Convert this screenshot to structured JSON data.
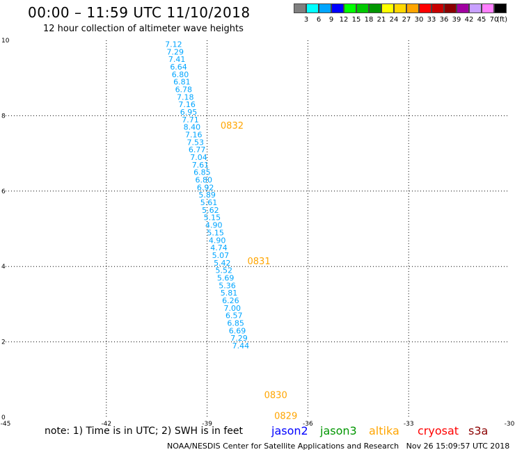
{
  "header": {
    "title": "00:00 – 11:59 UTC 11/10/2018",
    "subtitle": "12 hour collection of altimeter wave heights"
  },
  "color_scale": {
    "labels": [
      "3",
      "6",
      "9",
      "12",
      "15",
      "18",
      "21",
      "24",
      "27",
      "30",
      "33",
      "36",
      "39",
      "42",
      "45",
      "70"
    ],
    "units": "(ft)",
    "colors": [
      "#808080",
      "#00ffff",
      "#00a5ff",
      "#0000ff",
      "#00ff00",
      "#00c800",
      "#009600",
      "#ffff00",
      "#ffd700",
      "#ffa500",
      "#ff0000",
      "#c80000",
      "#8b0000",
      "#a000a0",
      "#c8a0ff",
      "#ff80ff",
      "#000000"
    ]
  },
  "chart_data": {
    "type": "scatter",
    "xlim": [
      -45,
      -30
    ],
    "ylim": [
      0,
      10
    ],
    "x_ticks": [
      "-45",
      "-42",
      "-39",
      "-36",
      "-33",
      "-30"
    ],
    "y_ticks": [
      "0",
      "2",
      "4",
      "6",
      "8",
      "10"
    ],
    "grid": true,
    "points": [
      {
        "x": -40.0,
        "y": 9.9,
        "v": "7.12"
      },
      {
        "x": -39.95,
        "y": 9.7,
        "v": "7.29"
      },
      {
        "x": -39.9,
        "y": 9.5,
        "v": "7.41"
      },
      {
        "x": -39.85,
        "y": 9.3,
        "v": "6.64"
      },
      {
        "x": -39.8,
        "y": 9.1,
        "v": "6.80"
      },
      {
        "x": -39.75,
        "y": 8.9,
        "v": "6.81"
      },
      {
        "x": -39.7,
        "y": 8.7,
        "v": "6.78"
      },
      {
        "x": -39.65,
        "y": 8.5,
        "v": "7.18"
      },
      {
        "x": -39.6,
        "y": 8.3,
        "v": "7.16"
      },
      {
        "x": -39.55,
        "y": 8.1,
        "v": "6.95"
      },
      {
        "x": -39.5,
        "y": 7.9,
        "v": "7.71"
      },
      {
        "x": -39.45,
        "y": 7.7,
        "v": "8.40"
      },
      {
        "x": -39.4,
        "y": 7.5,
        "v": "7.16"
      },
      {
        "x": -39.35,
        "y": 7.3,
        "v": "7.53"
      },
      {
        "x": -39.3,
        "y": 7.1,
        "v": "6.77"
      },
      {
        "x": -39.25,
        "y": 6.9,
        "v": "7.04"
      },
      {
        "x": -39.2,
        "y": 6.7,
        "v": "7.61"
      },
      {
        "x": -39.15,
        "y": 6.5,
        "v": "6.85"
      },
      {
        "x": -39.1,
        "y": 6.3,
        "v": "6.80"
      },
      {
        "x": -39.05,
        "y": 6.1,
        "v": "6.92"
      },
      {
        "x": -39.0,
        "y": 5.9,
        "v": "5.89"
      },
      {
        "x": -38.95,
        "y": 5.7,
        "v": "5.61"
      },
      {
        "x": -38.9,
        "y": 5.5,
        "v": "5.62"
      },
      {
        "x": -38.85,
        "y": 5.3,
        "v": "5.15"
      },
      {
        "x": -38.8,
        "y": 5.1,
        "v": "4.90"
      },
      {
        "x": -38.75,
        "y": 4.9,
        "v": "5.15"
      },
      {
        "x": -38.7,
        "y": 4.7,
        "v": "4.90"
      },
      {
        "x": -38.65,
        "y": 4.5,
        "v": "4.74"
      },
      {
        "x": -38.6,
        "y": 4.3,
        "v": "5.07"
      },
      {
        "x": -38.55,
        "y": 4.1,
        "v": "5.42"
      },
      {
        "x": -38.5,
        "y": 3.9,
        "v": "5.52"
      },
      {
        "x": -38.45,
        "y": 3.7,
        "v": "5.69"
      },
      {
        "x": -38.4,
        "y": 3.5,
        "v": "5.36"
      },
      {
        "x": -38.35,
        "y": 3.3,
        "v": "5.81"
      },
      {
        "x": -38.3,
        "y": 3.1,
        "v": "6.26"
      },
      {
        "x": -38.25,
        "y": 2.9,
        "v": "7.00"
      },
      {
        "x": -38.2,
        "y": 2.7,
        "v": "6.57"
      },
      {
        "x": -38.15,
        "y": 2.5,
        "v": "6.85"
      },
      {
        "x": -38.1,
        "y": 2.3,
        "v": "6.69"
      },
      {
        "x": -38.05,
        "y": 2.1,
        "v": "7.29"
      },
      {
        "x": -38.0,
        "y": 1.9,
        "v": "7.44"
      }
    ],
    "time_labels": [
      {
        "text": "0832",
        "x": -38.6,
        "y": 7.75
      },
      {
        "text": "0831",
        "x": -37.8,
        "y": 4.15
      },
      {
        "text": "0830",
        "x": -37.3,
        "y": 0.6
      },
      {
        "text": "0829",
        "x": -37.0,
        "y": 0.05
      }
    ],
    "point_color": "#00a5ff",
    "time_label_color": "#ffa500"
  },
  "footer": {
    "note": "note: 1) Time is in UTC; 2) SWH is in feet",
    "satellites": [
      {
        "name": "jason2",
        "color": "#0000ff"
      },
      {
        "name": "jason3",
        "color": "#009600"
      },
      {
        "name": "altika",
        "color": "#ffa500"
      },
      {
        "name": "cryosat",
        "color": "#ff0000"
      },
      {
        "name": "s3a",
        "color": "#8b0000"
      }
    ],
    "credit": "NOAA/NESDIS Center for Satellite Applications and Research",
    "timestamp": "Nov 26 15:09:57 UTC 2018"
  }
}
